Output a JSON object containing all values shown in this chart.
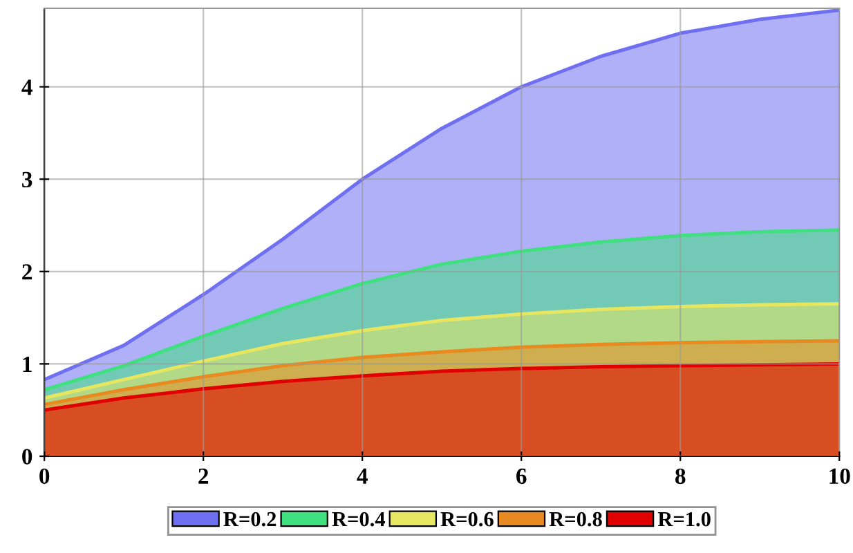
{
  "chart_data": {
    "type": "area",
    "x": [
      0,
      1,
      2,
      3,
      4,
      5,
      6,
      7,
      8,
      9,
      10
    ],
    "series": [
      {
        "name": "R=0.2",
        "color": "#6f6ff2",
        "values": [
          0.83,
          1.2,
          1.75,
          2.35,
          3.0,
          3.55,
          4.0,
          4.33,
          4.58,
          4.73,
          4.83
        ]
      },
      {
        "name": "R=0.4",
        "color": "#40e080",
        "values": [
          0.72,
          0.98,
          1.3,
          1.6,
          1.87,
          2.08,
          2.22,
          2.32,
          2.39,
          2.43,
          2.45
        ]
      },
      {
        "name": "R=0.6",
        "color": "#e6e660",
        "values": [
          0.63,
          0.83,
          1.03,
          1.22,
          1.36,
          1.47,
          1.54,
          1.59,
          1.62,
          1.64,
          1.65
        ]
      },
      {
        "name": "R=0.8",
        "color": "#e88a20",
        "values": [
          0.56,
          0.72,
          0.86,
          0.98,
          1.07,
          1.13,
          1.18,
          1.21,
          1.23,
          1.24,
          1.25
        ]
      },
      {
        "name": "R=1.0",
        "color": "#e00000",
        "values": [
          0.5,
          0.63,
          0.73,
          0.81,
          0.87,
          0.92,
          0.95,
          0.97,
          0.98,
          0.99,
          1.0
        ]
      }
    ],
    "xlim": [
      0,
      10
    ],
    "ylim": [
      0,
      4.85
    ],
    "xticks": [
      0,
      2,
      4,
      6,
      8,
      10
    ],
    "yticks": [
      0,
      1,
      2,
      3,
      4
    ],
    "grid": true,
    "legend": "bottom"
  }
}
